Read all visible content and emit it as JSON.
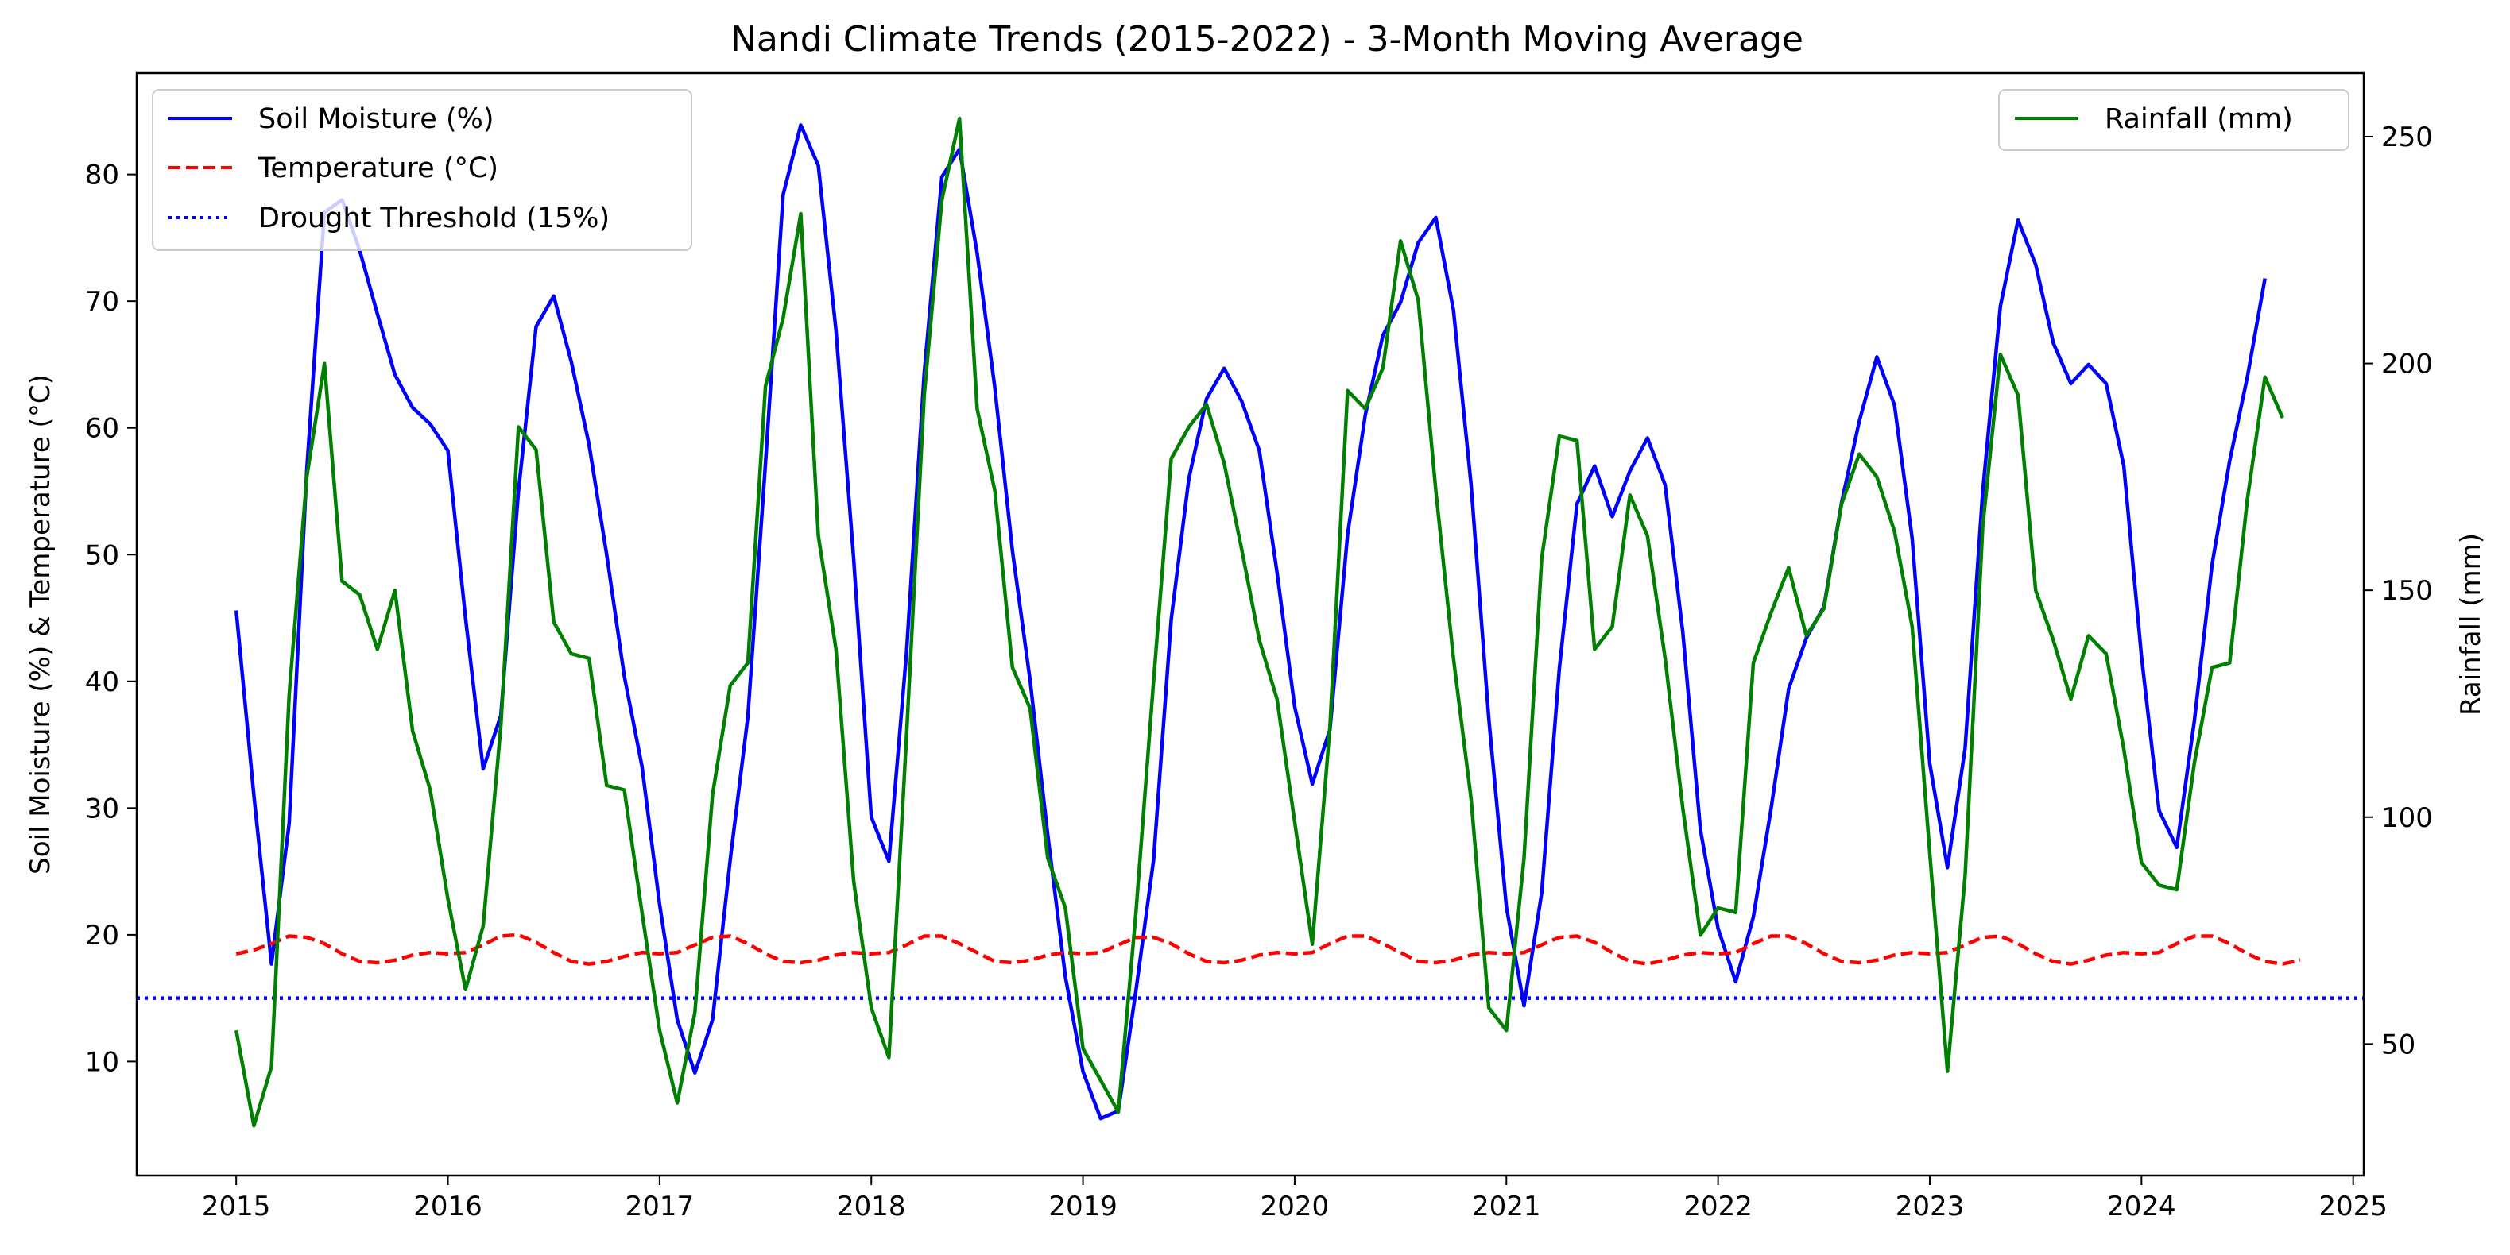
{
  "chart_data": {
    "type": "line",
    "title": "Nandi Climate Trends (2015-2022) - 3-Month Moving Average",
    "xlabel": "",
    "ylabel_left": "Soil Moisture (%) & Temperature (°C)",
    "ylabel_right": "Rainfall (mm)",
    "x_ticks": [
      "2015",
      "2016",
      "2017",
      "2018",
      "2019",
      "2020",
      "2021",
      "2022",
      "2023",
      "2024",
      "2025"
    ],
    "y_left_ticks": [
      10,
      20,
      30,
      40,
      50,
      60,
      70,
      80
    ],
    "y_right_ticks": [
      50,
      100,
      150,
      200,
      250
    ],
    "xlim": [
      2014.53,
      2025.05
    ],
    "ylim_left": [
      1.0,
      88.0
    ],
    "ylim_right": [
      21.0,
      264.0
    ],
    "grid": false,
    "legend_left_position": "top-left",
    "legend_right_position": "top-right",
    "x_start": 2015.0,
    "x_step_months": 1,
    "series": [
      {
        "name": "Soil Moisture (%)",
        "axis": "left",
        "color": "#0000ff",
        "style": "solid",
        "values": [
          45.6,
          31.0,
          17.7,
          28.8,
          56.7,
          77.0,
          78.0,
          74.0,
          69.0,
          64.2,
          61.6,
          60.3,
          58.2,
          45.0,
          33.1,
          37.3,
          55.0,
          68.0,
          70.4,
          65.2,
          58.7,
          50.0,
          40.4,
          33.3,
          22.4,
          13.3,
          9.1,
          13.3,
          25.9,
          37.2,
          57.2,
          78.4,
          83.9,
          80.7,
          67.7,
          49.7,
          29.3,
          25.8,
          42.3,
          64.3,
          79.8,
          82.0,
          73.8,
          63.2,
          50.3,
          40.1,
          27.9,
          16.7,
          9.2,
          5.5,
          6.1,
          15.6,
          25.9,
          44.9,
          56.0,
          62.3,
          64.7,
          62.1,
          58.2,
          48.6,
          38.0,
          31.9,
          36.2,
          51.6,
          61.0,
          67.3,
          69.9,
          74.6,
          76.6,
          69.3,
          55.5,
          37.1,
          22.2,
          14.4,
          23.3,
          41.0,
          54.0,
          57.0,
          53.0,
          56.6,
          59.2,
          55.5,
          43.9,
          28.3,
          20.5,
          16.3,
          21.4,
          29.9,
          39.4,
          43.4,
          45.9,
          54.1,
          60.5,
          65.6,
          61.8,
          51.3,
          33.5,
          25.3,
          34.7,
          55.0,
          69.6,
          76.4,
          72.9,
          66.7,
          63.5,
          65.0,
          63.5,
          57.0,
          42.0,
          29.8,
          26.9,
          36.9,
          49.2,
          57.4,
          64.0,
          71.8
        ]
      },
      {
        "name": "Temperature (°C)",
        "axis": "left",
        "color": "#ff0000",
        "style": "dashed",
        "values": [
          18.5,
          18.8,
          19.3,
          19.9,
          19.8,
          19.3,
          18.5,
          17.9,
          17.8,
          18.0,
          18.4,
          18.6,
          18.5,
          18.6,
          19.2,
          19.9,
          20.0,
          19.4,
          18.6,
          17.9,
          17.7,
          17.9,
          18.3,
          18.6,
          18.5,
          18.6,
          19.2,
          19.8,
          19.9,
          19.3,
          18.5,
          17.9,
          17.8,
          18.0,
          18.4,
          18.6,
          18.5,
          18.6,
          19.2,
          19.9,
          19.9,
          19.3,
          18.6,
          17.9,
          17.8,
          18.0,
          18.4,
          18.6,
          18.5,
          18.6,
          19.2,
          19.8,
          19.8,
          19.3,
          18.5,
          17.9,
          17.8,
          18.0,
          18.4,
          18.6,
          18.5,
          18.6,
          19.3,
          19.9,
          19.9,
          19.3,
          18.6,
          17.9,
          17.8,
          18.0,
          18.4,
          18.6,
          18.5,
          18.6,
          19.2,
          19.8,
          19.9,
          19.4,
          18.6,
          17.9,
          17.7,
          18.0,
          18.4,
          18.6,
          18.5,
          18.6,
          19.3,
          19.9,
          19.9,
          19.3,
          18.5,
          17.9,
          17.8,
          18.0,
          18.4,
          18.6,
          18.5,
          18.6,
          19.2,
          19.8,
          19.9,
          19.3,
          18.5,
          17.9,
          17.7,
          18.0,
          18.4,
          18.6,
          18.5,
          18.6,
          19.3,
          19.9,
          19.9,
          19.3,
          18.5,
          17.9,
          17.7,
          18.0
        ]
      },
      {
        "name": "Drought Threshold (15%)",
        "axis": "left",
        "color": "#0000ff",
        "style": "dotted",
        "constant": 15
      },
      {
        "name": "Rainfall (mm)",
        "axis": "right",
        "color": "#008000",
        "style": "solid",
        "values": [
          53,
          32,
          45,
          127,
          175,
          200,
          152,
          149,
          137,
          150,
          119,
          106,
          82,
          62,
          76,
          120,
          186,
          181,
          143,
          136,
          135,
          107,
          106,
          79,
          53,
          37,
          57,
          105,
          129,
          134,
          195,
          210,
          233,
          162,
          137,
          86,
          58,
          47,
          118,
          193,
          236,
          254,
          190,
          172,
          133,
          124,
          91,
          80,
          49,
          42,
          35,
          79,
          130,
          179,
          186,
          191,
          178,
          159,
          139,
          126,
          99,
          72,
          120,
          194,
          190,
          199,
          227,
          214,
          172,
          135,
          104,
          58,
          53,
          91,
          157,
          184,
          183,
          137,
          142,
          171,
          162,
          135,
          102,
          74,
          80,
          79,
          134,
          145,
          155,
          140,
          146,
          169,
          180,
          175,
          163,
          142,
          92,
          44,
          87,
          164,
          202,
          193,
          150,
          139,
          126,
          140,
          136,
          115,
          90,
          85,
          84,
          112,
          133,
          134,
          170,
          197,
          188
        ]
      }
    ]
  }
}
